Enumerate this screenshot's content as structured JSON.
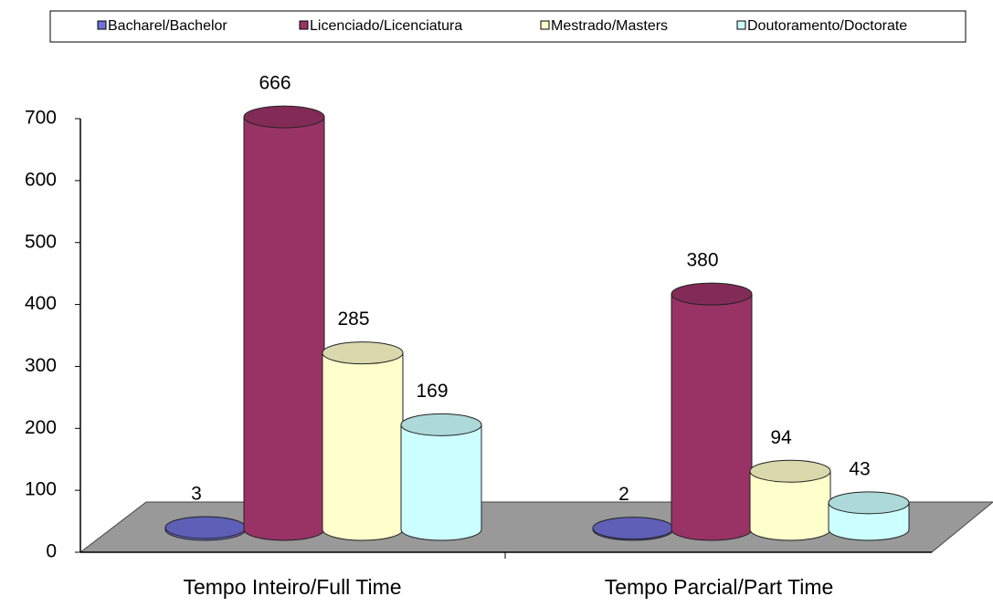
{
  "chart_data": {
    "type": "bar",
    "categories": [
      "Tempo Inteiro/Full Time",
      "Tempo Parcial/Part Time"
    ],
    "series": [
      {
        "name": "Bacharel/Bachelor",
        "color": "#7070d8",
        "values": [
          3,
          2
        ]
      },
      {
        "name": "Licenciado/Licenciatura",
        "color": "#993366",
        "values": [
          666,
          380
        ]
      },
      {
        "name": "Mestrado/Masters",
        "color": "#ffffcc",
        "values": [
          285,
          94
        ]
      },
      {
        "name": "Doutoramento/Doctorate",
        "color": "#ccffff",
        "values": [
          169,
          43
        ]
      }
    ],
    "ylim": [
      0,
      700
    ],
    "yticks": [
      0,
      100,
      200,
      300,
      400,
      500,
      600,
      700
    ],
    "legend": "top"
  }
}
